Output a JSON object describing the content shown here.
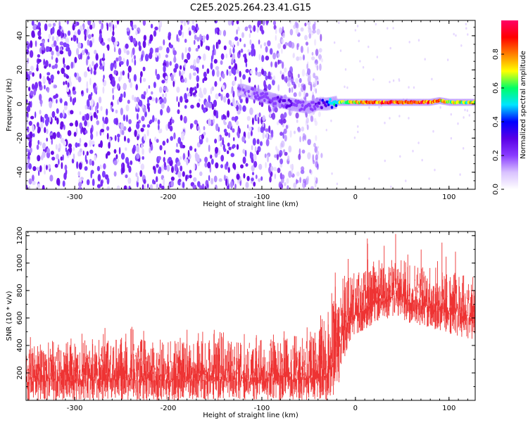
{
  "title": "C2E5.2025.264.23.41.G15",
  "chart_data": [
    {
      "type": "heatmap",
      "panel": "top",
      "xlabel": "Height of straight line (km)",
      "ylabel": "Frequency (Hz)",
      "xlim": [
        -352,
        128
      ],
      "ylim": [
        -50,
        49
      ],
      "x_ticks": [
        -300,
        -200,
        -100,
        0,
        100
      ],
      "y_ticks": [
        -40,
        -20,
        0,
        20,
        40
      ],
      "colorbar": {
        "label": "Normalized spectral amplitude",
        "range": [
          0,
          1
        ],
        "ticks": [
          0.0,
          0.2,
          0.4,
          0.6,
          0.8
        ],
        "colors": [
          "#ffffff",
          "#d9c2ff",
          "#8a3cff",
          "#5a00e6",
          "#0000ff",
          "#00e5ff",
          "#00ff66",
          "#ffff00",
          "#ff8000",
          "#ff0000",
          "#ff0066"
        ]
      },
      "ridge": {
        "description_points_x": [
          -120,
          -90,
          -70,
          -50,
          -40,
          -30,
          -20,
          -10,
          0,
          20,
          50,
          80,
          90,
          100,
          128
        ],
        "frequency_hz": [
          8,
          3,
          0,
          -2,
          0,
          0,
          1,
          1,
          1,
          1,
          1,
          1,
          2,
          1,
          1
        ],
        "amplitude": [
          0.15,
          0.25,
          0.3,
          0.2,
          0.25,
          0.45,
          0.6,
          0.7,
          0.75,
          0.9,
          0.95,
          0.9,
          0.85,
          0.7,
          0.7
        ]
      },
      "noise_region_x": [
        -352,
        -45
      ],
      "noise_amplitude_range": [
        0.0,
        0.2
      ]
    },
    {
      "type": "line",
      "panel": "bottom",
      "xlabel": "Height of straight line (km)",
      "ylabel": "SNR (10 * v/v)",
      "xlim": [
        -352,
        128
      ],
      "ylim": [
        0,
        1230
      ],
      "x_ticks": [
        -300,
        -200,
        -100,
        0,
        100
      ],
      "y_ticks": [
        200,
        400,
        600,
        800,
        1000,
        1200
      ],
      "series": [
        {
          "color": "#ee3333",
          "envelope_x": [
            -352,
            -300,
            -250,
            -200,
            -150,
            -100,
            -60,
            -40,
            -30,
            -25,
            -20,
            -15,
            -10,
            0,
            20,
            40,
            60,
            80,
            100,
            128
          ],
          "envelope_low": [
            0,
            0,
            0,
            0,
            0,
            0,
            0,
            0,
            0,
            20,
            60,
            200,
            350,
            470,
            560,
            610,
            560,
            520,
            480,
            440
          ],
          "envelope_high": [
            380,
            400,
            420,
            400,
            400,
            380,
            440,
            480,
            500,
            700,
            800,
            850,
            880,
            900,
            950,
            1000,
            980,
            940,
            900,
            870
          ]
        }
      ]
    }
  ]
}
